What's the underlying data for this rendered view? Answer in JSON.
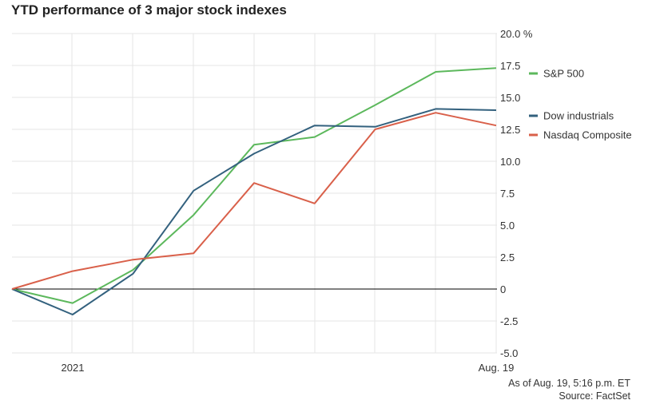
{
  "chart_data": {
    "type": "line",
    "title": "YTD performance of 3 major stock indexes",
    "xlabel": "",
    "ylabel": "",
    "x_tick_labels": [
      "2021",
      "Aug. 19"
    ],
    "y_ticks": [
      20.0,
      17.5,
      15.0,
      12.5,
      10.0,
      7.5,
      5.0,
      2.5,
      0,
      -2.5,
      -5.0
    ],
    "y_tick_labels": [
      "20.0 %",
      "17.5",
      "15.0",
      "12.5",
      "10.0",
      "7.5",
      "5.0",
      "2.5",
      "0",
      "-2.5",
      "-5.0"
    ],
    "ylim": [
      -5.0,
      20.0
    ],
    "grid": true,
    "legend_position": "right",
    "series": [
      {
        "name": "S&P 500",
        "color": "#5cb85c",
        "values": [
          0,
          -1.1,
          1.5,
          5.8,
          11.3,
          11.9,
          14.4,
          17.0,
          17.3
        ]
      },
      {
        "name": "Dow industrials",
        "color": "#33617e",
        "values": [
          0,
          -2.0,
          1.2,
          7.7,
          10.6,
          12.8,
          12.7,
          14.1,
          14.0
        ]
      },
      {
        "name": "Nasdaq Composite",
        "color": "#d9604a",
        "values": [
          0,
          1.4,
          2.3,
          2.8,
          8.3,
          6.7,
          12.5,
          13.8,
          12.8
        ]
      }
    ],
    "footnote": [
      "As of Aug. 19, 5:16 p.m. ET",
      "Source: FactSet"
    ]
  }
}
